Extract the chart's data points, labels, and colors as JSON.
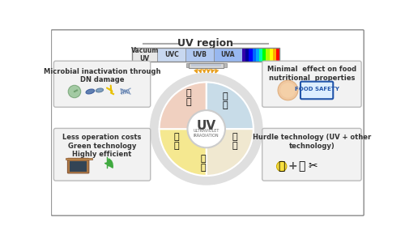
{
  "title": "UV region",
  "uv_labels": [
    "Vacuum\nUV",
    "UVC",
    "UVB",
    "UVA"
  ],
  "box1_title": "Microbial inactivation through\nDN damage",
  "box2_title": "Less operation costs\nGreen technology\nHighly efficient",
  "box3_title": "Minimal  effect on food\nnutritional  properties",
  "box4_title": "Hurdle technology (UV + other\ntechnology)",
  "center_text": "UV",
  "center_subtext": "ULTRAVIOLET\nIRRADIATION",
  "bg_color": "#f5f5f5",
  "border_color": "#cccccc",
  "box_bg": "#f0f0f0",
  "uvc_color": "#c8d8f0",
  "uvb_color": "#b0c8f0",
  "uva_color": "#98b8f0",
  "vacuum_color": "#e8e8e8",
  "arrow_color": "#e8a020",
  "wheel_sector_colors": [
    "#c8dce8",
    "#f0e8d0",
    "#f5e890",
    "#f0d0c0"
  ],
  "wheel_center_color": "#e8e8e8",
  "outer_wheel_color": "#d0d0d0"
}
